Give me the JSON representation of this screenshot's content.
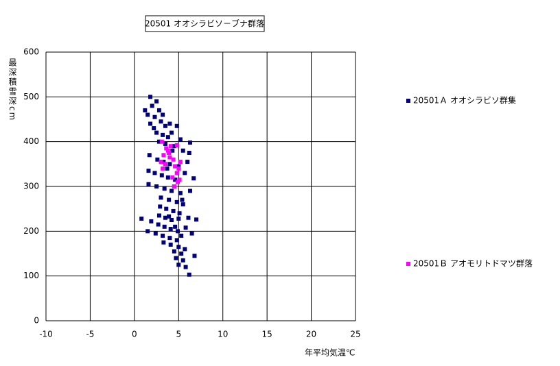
{
  "chart_data": {
    "type": "scatter",
    "title": "20501 オオシラビソ－ブナ群落",
    "y_label": "最深積雪深cm",
    "x_label": "年平均気温℃",
    "xlim": [
      -10,
      25
    ],
    "xticks": [
      -10,
      -5,
      0,
      5,
      10,
      15,
      20,
      25
    ],
    "ylim": [
      0,
      600
    ],
    "yticks": [
      0,
      100,
      200,
      300,
      400,
      500,
      600
    ],
    "grid": true,
    "legend": "right",
    "series": [
      {
        "name": "20501Ａ オオシラビソ群集",
        "color": "#000080",
        "x": [
          1.8,
          2.5,
          1.2,
          2.0,
          1.5,
          2.3,
          2.8,
          3.2,
          1.8,
          2.2,
          3.0,
          3.5,
          4.0,
          4.8,
          2.5,
          3.2,
          3.8,
          4.2,
          5.2,
          6.3,
          2.8,
          3.5,
          4.5,
          5.5,
          6.2,
          1.7,
          2.6,
          3.3,
          4.0,
          5.0,
          6.0,
          1.6,
          2.3,
          3.1,
          3.8,
          4.6,
          5.7,
          6.7,
          1.6,
          2.5,
          3.4,
          4.2,
          5.2,
          6.3,
          3.0,
          3.9,
          4.8,
          5.5,
          3.6,
          4.4,
          5.1,
          2.8,
          3.5,
          4.2,
          5.0,
          6.1,
          7.0,
          0.8,
          1.9,
          2.7,
          3.4,
          4.1,
          4.9,
          5.8,
          1.5,
          2.4,
          3.2,
          4.0,
          4.8,
          6.5,
          3.3,
          4.1,
          5.0,
          5.7,
          4.5,
          5.3,
          6.8,
          4.7,
          5.5,
          5.0,
          5.8,
          6.2,
          4.3,
          3.7,
          4.5,
          5.4,
          2.9,
          3.9,
          4.6,
          5.3
        ],
        "values": [
          500,
          490,
          470,
          480,
          460,
          455,
          470,
          460,
          440,
          430,
          445,
          435,
          440,
          435,
          420,
          415,
          410,
          420,
          405,
          398,
          400,
          395,
          390,
          380,
          375,
          370,
          360,
          355,
          350,
          345,
          355,
          335,
          330,
          325,
          320,
          315,
          330,
          318,
          305,
          300,
          295,
          290,
          285,
          290,
          275,
          270,
          265,
          260,
          250,
          245,
          240,
          235,
          230,
          225,
          228,
          230,
          226,
          228,
          222,
          215,
          210,
          205,
          200,
          208,
          200,
          195,
          190,
          185,
          180,
          195,
          175,
          170,
          165,
          160,
          155,
          150,
          145,
          140,
          135,
          125,
          120,
          103,
          380,
          340,
          300,
          270,
          255,
          233,
          210,
          190
        ]
      },
      {
        "name": "20501Ｂ アオモリトドマツ群落",
        "color": "#ff00ff",
        "x": [
          3.1,
          3.6,
          4.1,
          4.8,
          3.3,
          3.9,
          4.4,
          3.0,
          3.5,
          4.0,
          3.2,
          4.6,
          5.2,
          4.8,
          4.3,
          4.9,
          4.5,
          5.1,
          5.0,
          3.8
        ],
        "values": [
          400,
          385,
          390,
          392,
          370,
          375,
          360,
          355,
          350,
          365,
          340,
          345,
          355,
          330,
          320,
          310,
          300,
          315,
          340,
          380
        ]
      }
    ]
  }
}
